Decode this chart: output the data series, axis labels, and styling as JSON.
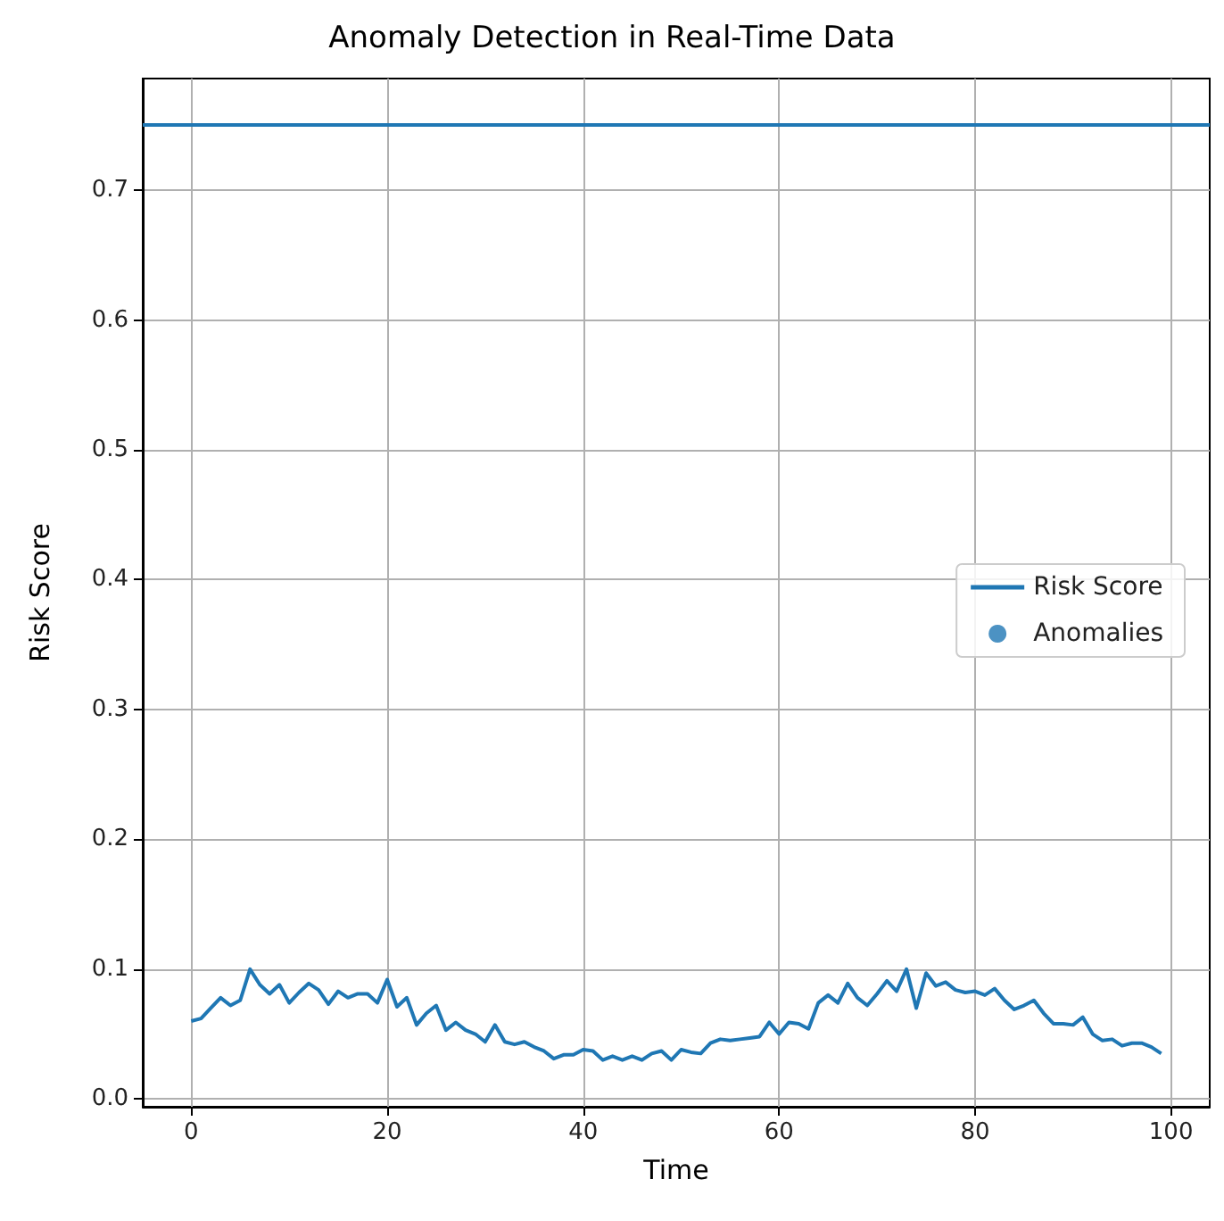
{
  "chart_data": {
    "type": "line",
    "title": "Anomaly Detection in Real-Time Data",
    "xlabel": "Time",
    "ylabel": "Risk Score",
    "xlim": [
      -4.95,
      103.95
    ],
    "xticks": [
      0,
      20,
      40,
      60,
      80,
      100
    ],
    "ylim": [
      -0.006,
      0.786
    ],
    "yticks": [
      {
        "value": 0,
        "label": "0.0"
      },
      0.1,
      0.2,
      0.3,
      0.4,
      0.5,
      0.6,
      0.7
    ],
    "grid": true,
    "legend": "right",
    "line_style": "solid",
    "ref_lines": [
      {
        "axis": "y",
        "value": 0.75,
        "color": "#1f77b4"
      }
    ],
    "series": [
      {
        "name": "Risk Score",
        "color": "#1f77b4",
        "marker": "none",
        "x": [
          0,
          1,
          2,
          3,
          4,
          5,
          6,
          7,
          8,
          9,
          10,
          11,
          12,
          13,
          14,
          15,
          16,
          17,
          18,
          19,
          20,
          21,
          22,
          23,
          24,
          25,
          26,
          27,
          28,
          29,
          30,
          31,
          32,
          33,
          34,
          35,
          36,
          37,
          38,
          39,
          40,
          41,
          42,
          43,
          44,
          45,
          46,
          47,
          48,
          49,
          50,
          51,
          52,
          53,
          54,
          55,
          56,
          57,
          58,
          59,
          60,
          61,
          62,
          63,
          64,
          65,
          66,
          67,
          68,
          69,
          70,
          71,
          72,
          73,
          74,
          75,
          76,
          77,
          78,
          79,
          80,
          81,
          82,
          83,
          84,
          85,
          86,
          87,
          88,
          89,
          90,
          91,
          92,
          93,
          94,
          95,
          96,
          97,
          98,
          99
        ],
        "values": [
          0.06,
          0.062,
          0.07,
          0.078,
          0.072,
          0.076,
          0.1,
          0.088,
          0.081,
          0.088,
          0.074,
          0.082,
          0.089,
          0.084,
          0.073,
          0.083,
          0.078,
          0.081,
          0.081,
          0.074,
          0.092,
          0.071,
          0.078,
          0.057,
          0.066,
          0.072,
          0.053,
          0.059,
          0.053,
          0.05,
          0.044,
          0.057,
          0.044,
          0.042,
          0.044,
          0.04,
          0.037,
          0.031,
          0.034,
          0.034,
          0.038,
          0.037,
          0.03,
          0.033,
          0.03,
          0.033,
          0.03,
          0.035,
          0.037,
          0.03,
          0.038,
          0.036,
          0.035,
          0.043,
          0.046,
          0.045,
          0.046,
          0.047,
          0.048,
          0.059,
          0.05,
          0.059,
          0.058,
          0.054,
          0.074,
          0.08,
          0.074,
          0.089,
          0.078,
          0.072,
          0.081,
          0.091,
          0.083,
          0.1,
          0.07,
          0.097,
          0.087,
          0.09,
          0.084,
          0.082,
          0.083,
          0.08,
          0.085,
          0.076,
          0.069,
          0.072,
          0.076,
          0.066,
          0.058,
          0.058,
          0.057,
          0.063,
          0.05,
          0.045,
          0.046,
          0.041,
          0.043,
          0.043,
          0.04,
          0.035
        ]
      },
      {
        "name": "Anomalies",
        "type": "scatter",
        "color": "#1f77b4",
        "marker": "circle"
      }
    ]
  }
}
